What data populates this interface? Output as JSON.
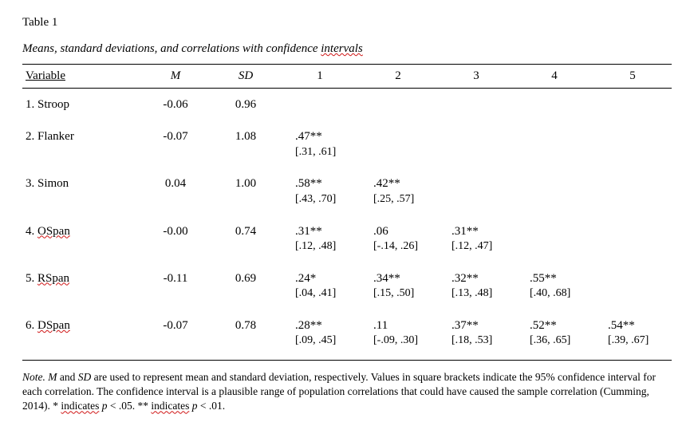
{
  "table_label": "Table 1",
  "caption_prefix": "Means, standard deviations, and correlations with confidence ",
  "caption_underlined": "intervals",
  "header": {
    "variable": "Variable",
    "mean": "M",
    "sd": "SD",
    "c1": "1",
    "c2": "2",
    "c3": "3",
    "c4": "4",
    "c5": "5"
  },
  "rows": {
    "r1": {
      "label_plain": "1. Stroop",
      "m": "-0.06",
      "sd": "0.96"
    },
    "r2": {
      "label_plain": "2. Flanker",
      "m": "-0.07",
      "sd": "1.08",
      "c1_r": ".47**",
      "c1_ci": "[.31, .61]"
    },
    "r3": {
      "label_plain": "3. Simon",
      "m": "0.04",
      "sd": "1.00",
      "c1_r": ".58**",
      "c1_ci": "[.43, .70]",
      "c2_r": ".42**",
      "c2_ci": "[.25, .57]"
    },
    "r4": {
      "label_pre": "4. ",
      "label_ul": "OSpan",
      "m": "-0.00",
      "sd": "0.74",
      "c1_r": ".31**",
      "c1_ci": "[.12, .48]",
      "c2_r": ".06",
      "c2_ci": "[-.14, .26]",
      "c3_r": ".31**",
      "c3_ci": "[.12, .47]"
    },
    "r5": {
      "label_pre": "5. ",
      "label_ul": "RSpan",
      "m": "-0.11",
      "sd": "0.69",
      "c1_r": ".24*",
      "c1_ci": "[.04, .41]",
      "c2_r": ".34**",
      "c2_ci": "[.15, .50]",
      "c3_r": ".32**",
      "c3_ci": "[.13, .48]",
      "c4_r": ".55**",
      "c4_ci": "[.40, .68]"
    },
    "r6": {
      "label_pre": "6. ",
      "label_ul": "DSpan",
      "m": "-0.07",
      "sd": "0.78",
      "c1_r": ".28**",
      "c1_ci": "[.09, .45]",
      "c2_r": ".11",
      "c2_ci": "[-.09, .30]",
      "c3_r": ".37**",
      "c3_ci": "[.18, .53]",
      "c4_r": ".52**",
      "c4_ci": "[.36, .65]",
      "c5_r": ".54**",
      "c5_ci": "[.39, .67]"
    }
  },
  "note": {
    "lead_ital": "Note. M",
    "part1": " and ",
    "sd_ital": "SD",
    "part2": " are used to represent mean and standard deviation, respectively. Values in square brackets indicate the 95% confidence interval for each correlation. The confidence interval is a plausible range of population correlations that could have caused the sample correlation (Cumming, 2014). * ",
    "ind1_ul": "indicates",
    "p1_ital": " p ",
    "p1_rest": "< .05. ** ",
    "ind2_ul": "indicates",
    "p2_ital": " p ",
    "p2_rest": "< .01."
  }
}
